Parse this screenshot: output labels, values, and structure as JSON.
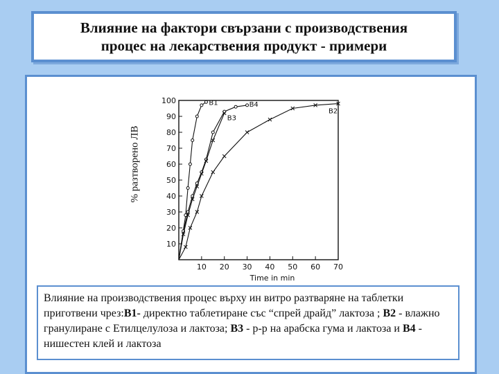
{
  "title": {
    "line1": "Влияние на фактори свързани с производствения",
    "line2": "процес на лекарствения продукт - примери"
  },
  "caption": {
    "part1": "Влияние на производствения процес върху ин витро разтваряне на таблетки приготвени чрез:",
    "b1": "B1-",
    "part2": " директно таблетиране със “спрей драйд” лактоза ; ",
    "b2": "B2",
    "part3": " - влажно гранулиране с Етилцелулоза и лактоза; ",
    "b3": "B3",
    "part4": " - р-р на арабска гума и лактоза и ",
    "b4": "B4",
    "part5": " - нишестен клей и лактоза"
  },
  "chart_data": {
    "type": "line",
    "xlabel": "Time in min",
    "ylabel": "% разтворено ЛВ",
    "xlim": [
      0,
      70
    ],
    "ylim": [
      0,
      100
    ],
    "x_ticks": [
      10,
      20,
      30,
      40,
      50,
      60,
      70
    ],
    "y_ticks": [
      10,
      20,
      30,
      40,
      50,
      60,
      70,
      80,
      90,
      100
    ],
    "grid": false,
    "series": [
      {
        "name": "B1",
        "marker": "circle-open",
        "x": [
          0,
          3,
          4,
          5,
          6,
          8,
          10,
          12
        ],
        "y": [
          0,
          28,
          45,
          60,
          75,
          90,
          97,
          99
        ]
      },
      {
        "name": "B4",
        "marker": "circle-open",
        "x": [
          0,
          2,
          4,
          6,
          8,
          10,
          12,
          15,
          20,
          25,
          30
        ],
        "y": [
          0,
          18,
          30,
          40,
          48,
          55,
          63,
          80,
          93,
          96,
          97
        ]
      },
      {
        "name": "B3",
        "marker": "cross",
        "x": [
          0,
          2,
          4,
          6,
          8,
          10,
          12,
          15,
          20
        ],
        "y": [
          0,
          16,
          28,
          38,
          46,
          54,
          62,
          75,
          92
        ]
      },
      {
        "name": "B2",
        "marker": "cross",
        "x": [
          0,
          3,
          5,
          8,
          10,
          15,
          20,
          30,
          40,
          50,
          60,
          70
        ],
        "y": [
          0,
          8,
          20,
          30,
          40,
          55,
          65,
          80,
          88,
          95,
          97,
          98
        ]
      }
    ],
    "annotations": [
      "B1",
      "B4",
      "B3",
      "B2"
    ],
    "colors": {
      "line": "#111111",
      "frame": "#111111"
    }
  }
}
